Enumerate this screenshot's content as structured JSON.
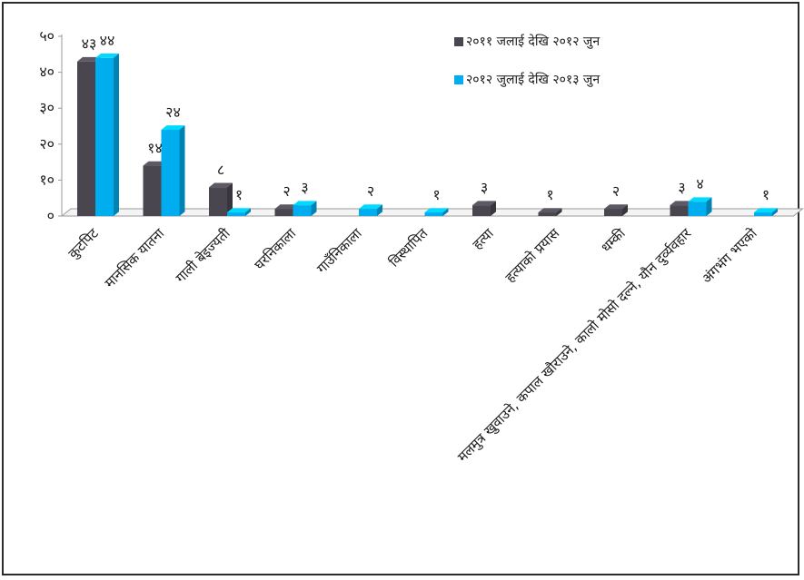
{
  "chart_data": {
    "type": "bar",
    "title": "",
    "xlabel": "",
    "ylabel": "",
    "ylim": [
      0,
      50
    ],
    "yticks": [
      "०",
      "१०",
      "२०",
      "३०",
      "४०",
      "५०"
    ],
    "categories": [
      "कुटपिट",
      "मानसिक यातना",
      "गाली बेइज्यती",
      "घरनिकाला",
      "गाउँनिकाला",
      "विस्थापित",
      "हत्या",
      "हत्याको प्रयास",
      "धम्की",
      "मलमुत्र खुवाउने, कपाल खौराउने, कालो मोसो दल्ने, यौन दुर्व्यवहार",
      "अंगभंग भएको"
    ],
    "series": [
      {
        "name": "२०११ जलाई देखि २०१२ जुन",
        "color": "#4a4650",
        "values": [
          43,
          14,
          8,
          null,
          null,
          null,
          3,
          1,
          2,
          3,
          null
        ],
        "labels": [
          "४३",
          "१४",
          "८",
          "२",
          "",
          "",
          "३",
          "१",
          "२",
          "३",
          ""
        ]
      },
      {
        "name": "२०१२ जुलाई देखि २०१३ जुन",
        "color": "#00aeef",
        "values": [
          44,
          24,
          1,
          3,
          2,
          1,
          null,
          null,
          null,
          4,
          1
        ],
        "labels": [
          "४४",
          "२४",
          "१",
          "३",
          "२",
          "१",
          "",
          "",
          "",
          "४",
          "१"
        ]
      }
    ],
    "extra_values": [
      {
        "series": 0,
        "index": 3,
        "value": 2
      }
    ],
    "legend_position": "top-right",
    "grid": false
  }
}
